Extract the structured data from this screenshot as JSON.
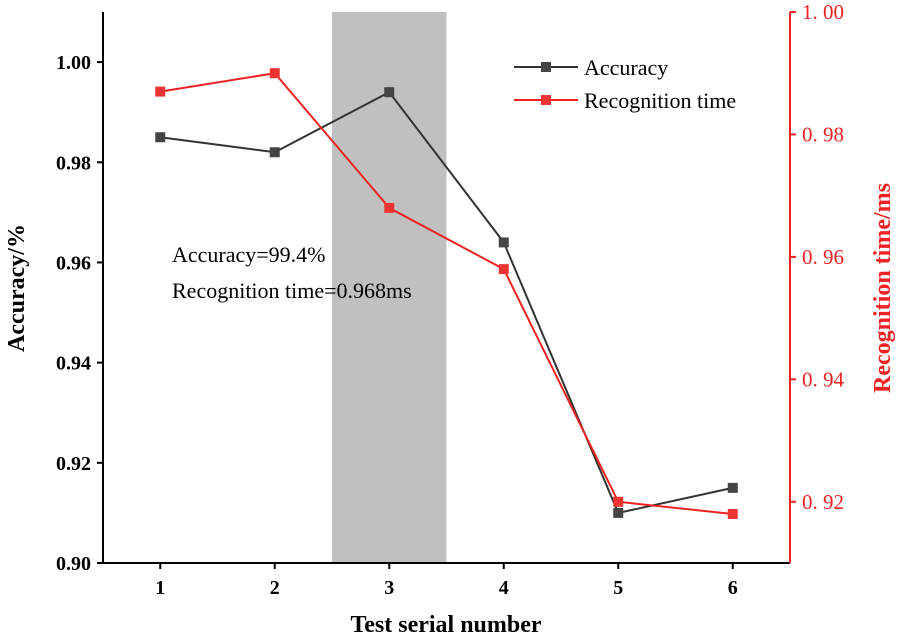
{
  "chart_data": {
    "type": "line",
    "title": "",
    "xlabel": "Test serial number",
    "ylabel": "Accuracy/%",
    "y2label": "Recognition time/ms",
    "x": [
      1,
      2,
      3,
      4,
      5,
      6
    ],
    "xlim": [
      0.5,
      6.5
    ],
    "ylim": [
      0.9,
      1.01
    ],
    "y2lim": [
      0.91,
      1.0
    ],
    "yticks": [
      "0.90",
      "0.92",
      "0.94",
      "0.96",
      "0.98",
      "1.00"
    ],
    "y2ticks": [
      "0. 92",
      "0. 94",
      "0. 96",
      "0. 98",
      "1. 00"
    ],
    "xticks": [
      "1",
      "2",
      "3",
      "4",
      "5",
      "6"
    ],
    "series": [
      {
        "name": "Accuracy",
        "axis": "left",
        "color": "#333333",
        "values": [
          0.985,
          0.982,
          0.994,
          0.964,
          0.91,
          0.915
        ]
      },
      {
        "name": "Recognition time",
        "axis": "right",
        "color": "#ee2222",
        "values": [
          0.987,
          0.99,
          0.968,
          0.958,
          0.92,
          0.918
        ]
      }
    ],
    "highlight": {
      "x_range": [
        2.5,
        3.5
      ],
      "color": "#c0c0c0"
    },
    "annotations": [
      "Accuracy=99.4%",
      "Recognition time=0.968ms"
    ],
    "legend_position": "top-right",
    "grid": false
  }
}
